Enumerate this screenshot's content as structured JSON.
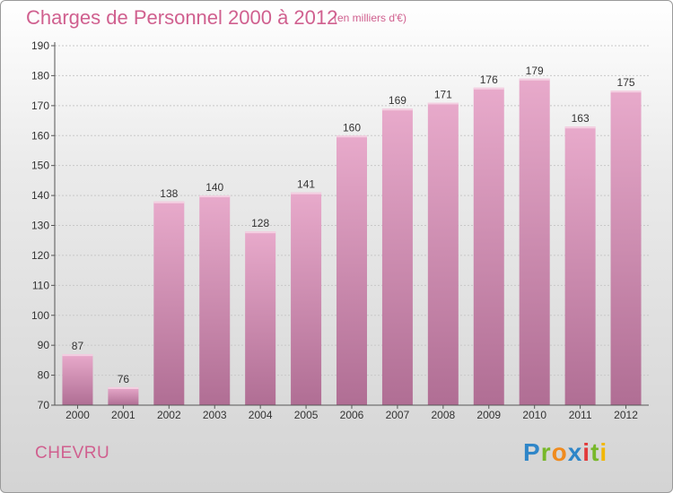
{
  "header": {
    "title": "Charges de Personnel 2000 à 2012",
    "subtitle": "(en milliers d'€)"
  },
  "footer": {
    "commune": "CHEVRU",
    "logo_text": "Proxiti"
  },
  "colors": {
    "accent": "#d0608f",
    "bar_top": "#e8aacb",
    "bar_bottom": "#b06e94"
  },
  "chart_data": {
    "type": "bar",
    "title": "Charges de Personnel 2000 à 2012",
    "subtitle": "(en milliers d'€)",
    "xlabel": "",
    "ylabel": "",
    "categories": [
      "2000",
      "2001",
      "2002",
      "2003",
      "2004",
      "2005",
      "2006",
      "2007",
      "2008",
      "2009",
      "2010",
      "2011",
      "2012"
    ],
    "values": [
      87,
      76,
      138,
      140,
      128,
      141,
      160,
      169,
      171,
      176,
      179,
      163,
      175
    ],
    "ylim": [
      70,
      190
    ],
    "yticks": [
      70,
      80,
      90,
      100,
      110,
      120,
      130,
      140,
      150,
      160,
      170,
      180,
      190
    ],
    "grid": true,
    "legend": "none"
  }
}
